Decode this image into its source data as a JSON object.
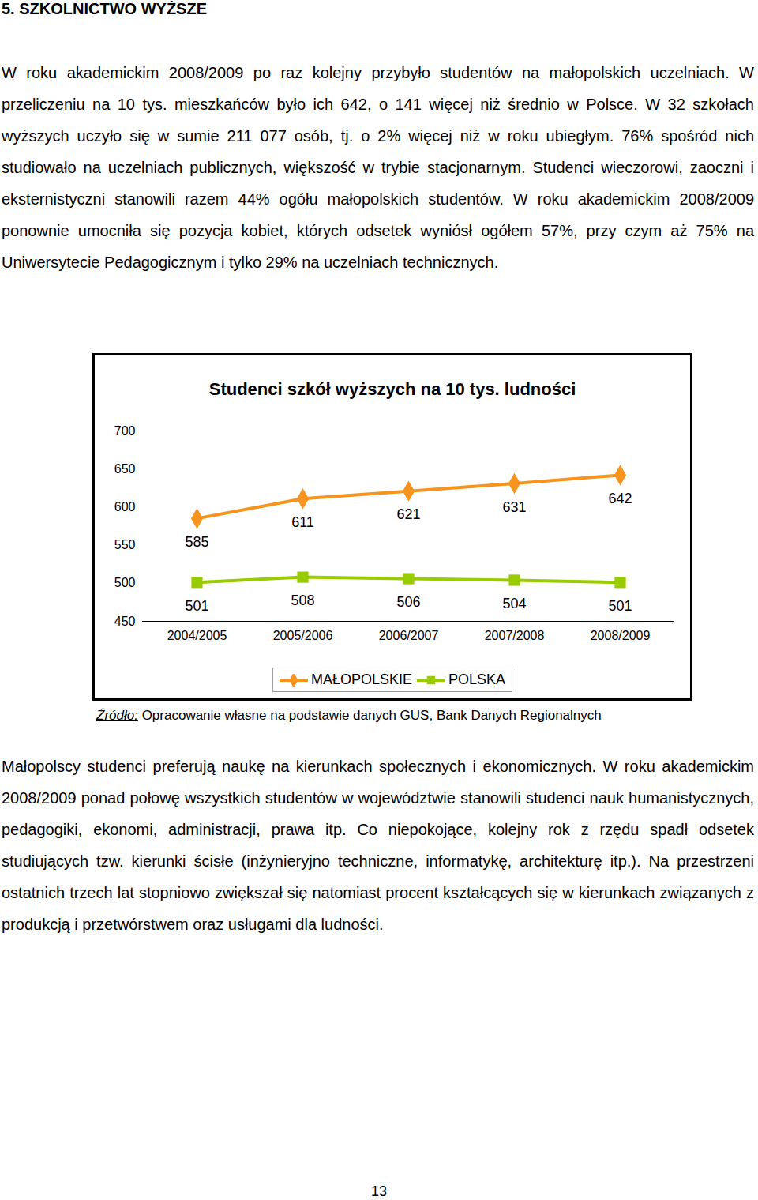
{
  "heading": "5. SZKOLNICTWO WYŻSZE",
  "paragraph_1": "W roku akademickim 2008/2009 po raz kolejny przybyło studentów na małopolskich uczelniach. W przeliczeniu na 10 tys. mieszkańców było ich 642, o 141 więcej niż średnio w Polsce. W 32 szkołach wyższych uczyło się w sumie 211 077 osób, tj. o 2% więcej niż w roku ubiegłym. 76% spośród nich studiowało na uczelniach publicznych, większość w trybie stacjonarnym. Studenci wieczorowi, zaoczni i eksternistyczni stanowili razem 44% ogółu małopolskich studentów. W roku akademickim 2008/2009 ponownie umocniła się pozycja kobiet, których odsetek wyniósł ogółem 57%, przy czym aż 75% na Uniwersytecie Pedagogicznym i tylko 29% na uczelniach technicznych.",
  "chart_data": {
    "type": "line",
    "title": "Studenci szkół wyższych na 10 tys. ludności",
    "categories": [
      "2004/2005",
      "2005/2006",
      "2006/2007",
      "2007/2008",
      "2008/2009"
    ],
    "series": [
      {
        "name": "MAŁOPOLSKIE",
        "color": "#f7941d",
        "marker": "diamond",
        "values": [
          585,
          611,
          621,
          631,
          642
        ]
      },
      {
        "name": "POLSKA",
        "color": "#99cc00",
        "marker": "square",
        "values": [
          501,
          508,
          506,
          504,
          501
        ]
      }
    ],
    "ylim": [
      450,
      700
    ],
    "yticks": [
      450,
      500,
      550,
      600,
      650,
      700
    ],
    "grid": false,
    "legend": "bottom",
    "data_labels": true
  },
  "source_label": "Źródło:",
  "source_text": " Opracowanie własne na podstawie danych GUS, Bank Danych Regionalnych",
  "paragraph_2": "Małopolscy studenci preferują naukę na kierunkach społecznych i ekonomicznych. W roku akademickim 2008/2009 ponad połowę wszystkich studentów w województwie stanowili studenci nauk humanistycznych, pedagogiki, ekonomi, administracji, prawa itp. Co niepokojące, kolejny rok z rzędu spadł odsetek studiujących tzw. kierunki ścisłe (inżynieryjno techniczne, informatykę, architekturę itp.). Na przestrzeni ostatnich trzech lat stopniowo zwiększał się natomiast procent kształcących się w kierunkach związanych z produkcją i przetwórstwem oraz usługami dla ludności.",
  "page_number": "13"
}
